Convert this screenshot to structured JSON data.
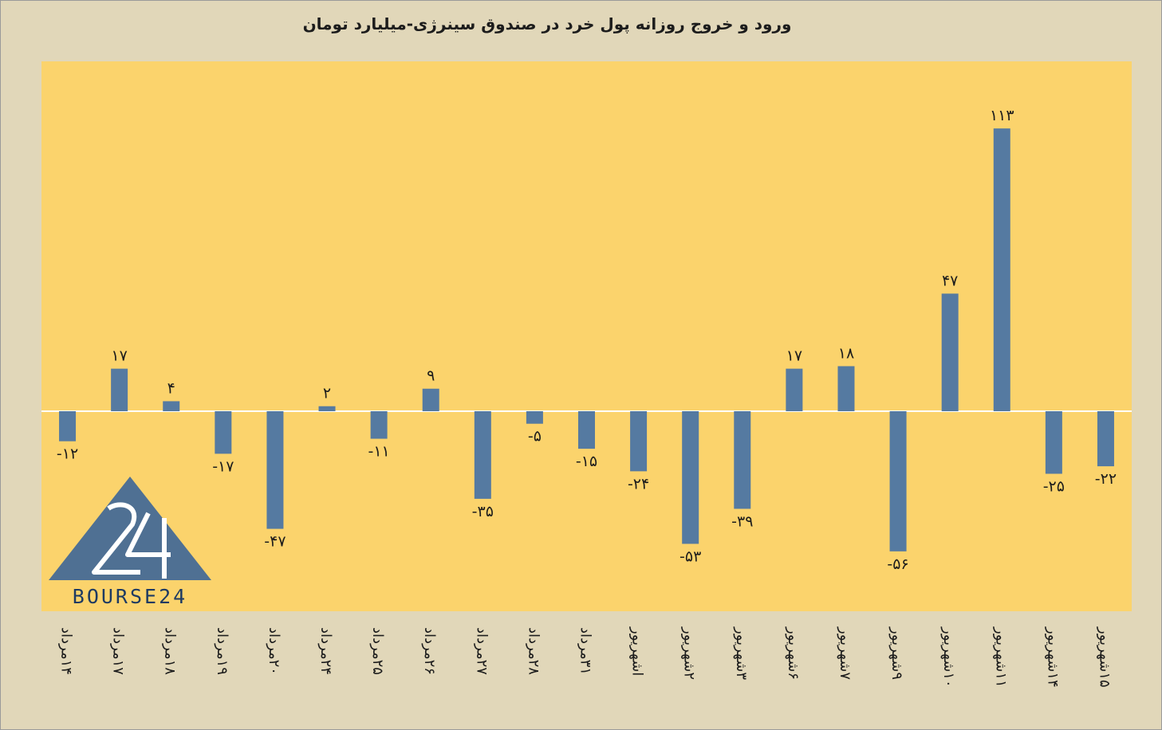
{
  "title": "ورود و خروج روزانه پول خرد در صندوق سینرژی-میلیارد تومان",
  "logo_text": "BOURSE24",
  "colors": {
    "background": "#e1d7b9",
    "plot_area": "#fbd36c",
    "bar": "#557aa1",
    "logo": "#4f7093"
  },
  "chart_data": {
    "type": "bar",
    "title": "ورود و خروج روزانه پول خرد در صندوق سینرژی-میلیارد تومان",
    "xlabel": "",
    "ylabel": "",
    "ylim": [
      -70,
      124
    ],
    "grid": false,
    "categories": [
      "۱۴مرداد",
      "۱۷مرداد",
      "۱۸مرداد",
      "۱۹مرداد",
      "۲۰مرداد",
      "۲۴مرداد",
      "۲۵مرداد",
      "۲۶مرداد",
      "۲۷مرداد",
      "۲۸مرداد",
      "۳۱مرداد",
      "اشهریور",
      "۲شهریور",
      "۳شهریور",
      "۶شهریور",
      "۷شهریور",
      "۹شهریور",
      "۱۰شهریور",
      "۱۱شهریور",
      "۱۴شهریور",
      "۱۵شهریور"
    ],
    "values": [
      -12,
      17,
      4,
      -17,
      -47,
      2,
      -11,
      9,
      -35,
      -5,
      -15,
      -24,
      -53,
      -39,
      17,
      18,
      -56,
      47,
      113,
      -25,
      -22
    ],
    "data_labels": [
      "-۱۲",
      "۱۷",
      "۴",
      "-۱۷",
      "-۴۷",
      "۲",
      "-۱۱",
      "۹",
      "-۳۵",
      "-۵",
      "-۱۵",
      "-۲۴",
      "-۵۳",
      "-۳۹",
      "۱۷",
      "۱۸",
      "-۵۶",
      "۴۷",
      "۱۱۳",
      "-۲۵",
      "-۲۲"
    ]
  }
}
